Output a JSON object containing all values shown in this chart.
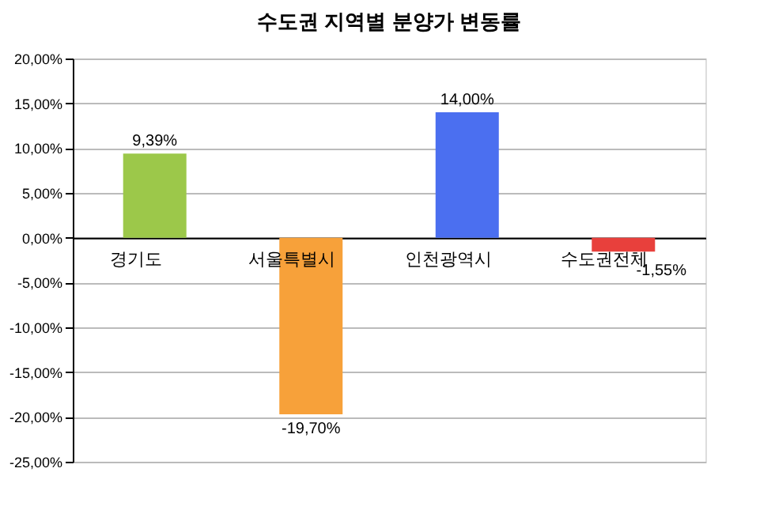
{
  "chart_data": {
    "type": "bar",
    "title": "수도권 지역별 분양가 변동률",
    "categories": [
      "경기도",
      "서울특별시",
      "인천광역시",
      "수도권전체"
    ],
    "values": [
      9.39,
      -19.7,
      14.0,
      -1.55
    ],
    "colors": [
      "#9cc84a",
      "#f7a13a",
      "#4b6ff0",
      "#e8403c"
    ],
    "value_labels": [
      "9,39%",
      "-19,70%",
      "14,00%",
      "-1,55%"
    ],
    "ylim": [
      -25,
      20
    ],
    "yticks": [
      {
        "value": 20,
        "label": "20,00%"
      },
      {
        "value": 15,
        "label": "15,00%"
      },
      {
        "value": 10,
        "label": "10,00%"
      },
      {
        "value": 5,
        "label": "5,00%"
      },
      {
        "value": 0,
        "label": "0,00%"
      },
      {
        "value": -5,
        "label": "-5,00%"
      },
      {
        "value": -10,
        "label": "-10,00%"
      },
      {
        "value": -15,
        "label": "-15,00%"
      },
      {
        "value": -20,
        "label": "-20,00%"
      },
      {
        "value": -25,
        "label": "-25,00%"
      }
    ],
    "grid": "y",
    "legend": false
  }
}
